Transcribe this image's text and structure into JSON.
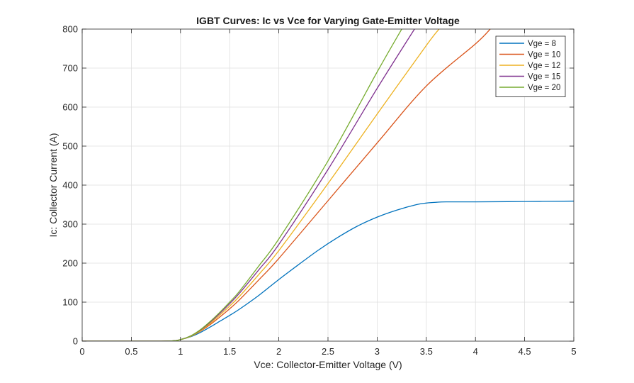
{
  "chart_data": {
    "type": "line",
    "title": "IGBT Curves: Ic vs Vce for Varying Gate-Emitter Voltage",
    "xlabel": "Vce: Collector-Emitter Voltage (V)",
    "ylabel": "Ic: Collector Current (A)",
    "xlim": [
      0,
      5
    ],
    "ylim": [
      0,
      800
    ],
    "xticks": [
      0,
      0.5,
      1,
      1.5,
      2,
      2.5,
      3,
      3.5,
      4,
      4.5,
      5
    ],
    "xtick_labels": [
      "0",
      "0.5",
      "1",
      "1.5",
      "2",
      "2.5",
      "3",
      "3.5",
      "4",
      "4.5",
      "5"
    ],
    "yticks": [
      0,
      100,
      200,
      300,
      400,
      500,
      600,
      700,
      800
    ],
    "ytick_labels": [
      "0",
      "100",
      "200",
      "300",
      "400",
      "500",
      "600",
      "700",
      "800"
    ],
    "grid": true,
    "legend_position": "top-right",
    "series": [
      {
        "name": "Vge = 8",
        "color": "#0072BD",
        "x": [
          0,
          0.5,
          0.9,
          1.0,
          1.1,
          1.2,
          1.3,
          1.4,
          1.5,
          1.6,
          1.8,
          2.0,
          2.2,
          2.4,
          2.6,
          2.8,
          3.0,
          3.2,
          3.4,
          3.5,
          3.6,
          3.7,
          4.0,
          4.5,
          5.0
        ],
        "y": [
          0,
          0,
          0.5,
          4,
          11,
          22,
          36,
          51,
          66,
          82,
          118,
          158,
          196,
          233,
          266,
          295,
          318,
          336,
          350,
          354,
          356,
          357,
          357,
          358,
          359
        ]
      },
      {
        "name": "Vge = 10",
        "color": "#D95319",
        "x": [
          0,
          0.5,
          0.9,
          1.0,
          1.1,
          1.2,
          1.3,
          1.4,
          1.5,
          1.6,
          1.8,
          2.0,
          2.5,
          3.0,
          3.5,
          4.0,
          4.15
        ],
        "y": [
          0,
          0,
          0.5,
          4,
          12,
          25,
          42,
          62,
          83,
          106,
          158,
          212,
          360,
          508,
          654,
          762,
          800
        ]
      },
      {
        "name": "Vge = 12",
        "color": "#EDB120",
        "x": [
          0,
          0.5,
          0.9,
          1.0,
          1.1,
          1.2,
          1.3,
          1.4,
          1.5,
          1.6,
          1.8,
          2.0,
          2.5,
          3.0,
          3.5,
          3.63
        ],
        "y": [
          0,
          0,
          0.5,
          4,
          12,
          26,
          45,
          67,
          90,
          115,
          172,
          232,
          404,
          582,
          758,
          800
        ]
      },
      {
        "name": "Vge = 15",
        "color": "#7E2F8E",
        "x": [
          0,
          0.5,
          0.9,
          1.0,
          1.1,
          1.2,
          1.3,
          1.4,
          1.5,
          1.6,
          1.8,
          2.0,
          2.5,
          3.0,
          3.38
        ],
        "y": [
          0,
          0,
          0.5,
          4,
          13,
          28,
          48,
          71,
          96,
          123,
          184,
          248,
          440,
          648,
          800
        ]
      },
      {
        "name": "Vge = 20",
        "color": "#77AC30",
        "x": [
          0,
          0.5,
          0.9,
          1.0,
          1.1,
          1.2,
          1.3,
          1.4,
          1.5,
          1.6,
          1.8,
          2.0,
          2.5,
          3.0,
          3.25
        ],
        "y": [
          0,
          0,
          0.5,
          4,
          13,
          29,
          50,
          74,
          100,
          128,
          194,
          262,
          462,
          690,
          800
        ]
      }
    ]
  }
}
